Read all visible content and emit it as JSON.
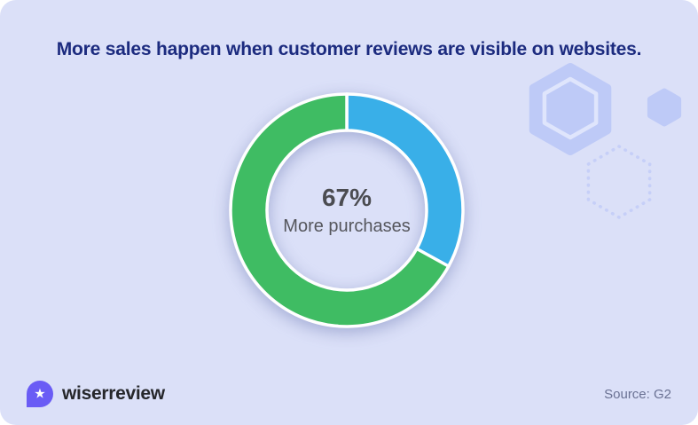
{
  "chart_data": {
    "type": "donut",
    "title": "More sales happen when customer reviews are visible on websites.",
    "segments": [
      {
        "label": "",
        "value": 33,
        "color": "#39afe8"
      },
      {
        "label": "More purchases",
        "value": 67,
        "color": "#3fbc63"
      }
    ],
    "start_angle_deg": 0,
    "direction": "clockwise",
    "center_label": {
      "value": "67%",
      "caption": "More purchases"
    },
    "legend": "none",
    "source": "Source: G2"
  },
  "footer": {
    "brand": "wiserreview",
    "star_glyph": "★",
    "source": "Source: G2"
  },
  "colors": {
    "card_background": "#dbe0f8",
    "title_navy": "#1c2b7f",
    "segment_green": "#3fbc63",
    "segment_blue": "#39afe8",
    "brand_purple": "#6a5cf5",
    "hexagon_fill": "#becaf7",
    "hexagon_ring": "#dfe5fc",
    "hexagon_dotted": "#c6cff8"
  }
}
